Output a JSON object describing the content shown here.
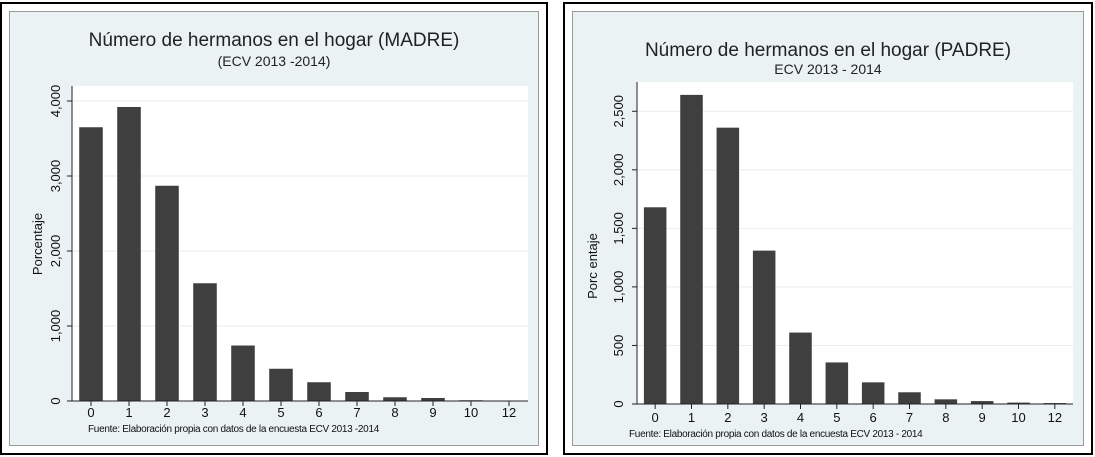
{
  "chart_data": [
    {
      "type": "bar",
      "title": "Número de hermanos en el hogar (MADRE)",
      "subtitle": "(ECV 2013 -2014)",
      "ylabel": "Porcentaje",
      "xlabel": "",
      "categories": [
        "0",
        "1",
        "2",
        "3",
        "4",
        "5",
        "6",
        "7",
        "8",
        "9",
        "10",
        "12"
      ],
      "values": [
        3650,
        3920,
        2870,
        1570,
        740,
        430,
        250,
        120,
        50,
        40,
        10,
        5
      ],
      "yticks": [
        0,
        1000,
        2000,
        3000,
        4000
      ],
      "ytick_labels": [
        "0",
        "1,000",
        "2,000",
        "3,000",
        "4,000"
      ],
      "ylim": [
        0,
        4200
      ],
      "grid": true,
      "bar_color": "#3f3f3f",
      "plot_background": "#ffffff",
      "outer_background": "#eaf2f3",
      "note": "Fuente: Elaboración propia con datos de la encuesta ECV 2013 -2014"
    },
    {
      "type": "bar",
      "title": "Número de hermanos en el hogar (PADRE)",
      "subtitle": "ECV 2013 - 2014",
      "ylabel": "Porc entaje",
      "xlabel": "",
      "categories": [
        "0",
        "1",
        "2",
        "3",
        "4",
        "5",
        "6",
        "7",
        "8",
        "9",
        "10",
        "12"
      ],
      "values": [
        1680,
        2640,
        2360,
        1310,
        610,
        355,
        185,
        100,
        40,
        25,
        12,
        8
      ],
      "yticks": [
        0,
        500,
        1000,
        1500,
        2000,
        2500
      ],
      "ytick_labels": [
        "0",
        "500",
        "1,000",
        "1,500",
        "2,000",
        "2,500"
      ],
      "ylim": [
        0,
        2750
      ],
      "grid": true,
      "bar_color": "#3f3f3f",
      "plot_background": "#ffffff",
      "outer_background": "#eaf2f3",
      "note": "Fuente: Elaboración propia con datos de la encuesta ECV 2013 - 2014"
    }
  ]
}
